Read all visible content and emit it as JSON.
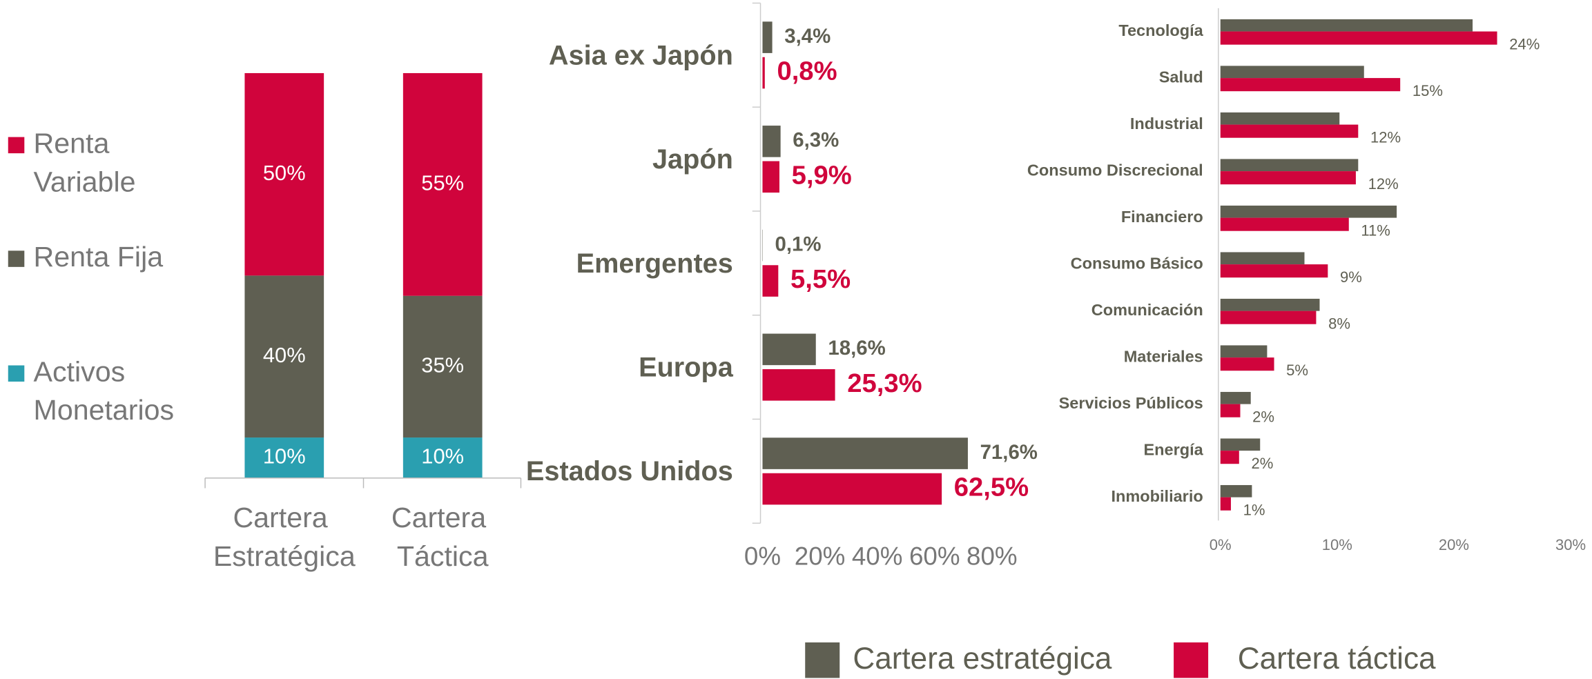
{
  "chart_data": [
    {
      "type": "stacked_bar",
      "categories": [
        "Cartera Estratégica",
        "Cartera Táctica"
      ],
      "series": [
        {
          "name": "Activos Monetarios",
          "color": "#2a9fb0",
          "values": [
            10,
            10
          ],
          "value_labels": [
            "10%",
            "10%"
          ]
        },
        {
          "name": "Renta Fija",
          "color": "#5f5f52",
          "values": [
            40,
            35
          ],
          "value_labels": [
            "40%",
            "35%"
          ]
        },
        {
          "name": "Renta Variable",
          "color": "#d0043c",
          "values": [
            50,
            55
          ],
          "value_labels": [
            "50%",
            "55%"
          ]
        }
      ],
      "ylim": [
        0,
        100
      ]
    },
    {
      "type": "hbar",
      "categories": [
        "Asia ex Japón",
        "Japón",
        "Emergentes",
        "Europa",
        "Estados Unidos"
      ],
      "series": [
        {
          "name": "Cartera estratégica",
          "color": "#5f5f52",
          "values": [
            3.4,
            6.3,
            0.1,
            18.6,
            71.6
          ],
          "value_labels": [
            "3,4%",
            "6,3%",
            "0,1%",
            "18,6%",
            "71,6%"
          ]
        },
        {
          "name": "Cartera táctica",
          "color": "#d0043c",
          "values": [
            0.8,
            5.9,
            5.5,
            25.3,
            62.5
          ],
          "value_labels": [
            "0,8%",
            "5,9%",
            "5,5%",
            "25,3%",
            "62,5%"
          ]
        }
      ],
      "xlim": [
        0,
        80
      ],
      "xticks": [
        {
          "value": 0,
          "label": "0%"
        },
        {
          "value": 20,
          "label": "20%"
        },
        {
          "value": 40,
          "label": "40%"
        },
        {
          "value": 60,
          "label": "60%"
        },
        {
          "value": 80,
          "label": "80%"
        }
      ]
    },
    {
      "type": "hbar_small",
      "categories": [
        "Tecnología",
        "Salud",
        "Industrial",
        "Consumo Discrecional",
        "Financiero",
        "Consumo Básico",
        "Comunicación",
        "Materiales",
        "Servicios Públicos",
        "Energía",
        "Inmobiliario"
      ],
      "series": [
        {
          "name": "Cartera estratégica",
          "color": "#5f5f52",
          "values": [
            21.6,
            12.3,
            10.2,
            11.8,
            15.1,
            7.2,
            8.5,
            4.0,
            2.6,
            3.4,
            2.7
          ]
        },
        {
          "name": "Cartera táctica",
          "color": "#d0043c",
          "values": [
            23.7,
            15.4,
            11.8,
            11.6,
            11.0,
            9.2,
            8.2,
            4.6,
            1.7,
            1.6,
            0.9
          ],
          "value_labels": [
            "24%",
            "15%",
            "12%",
            "12%",
            "11%",
            "9%",
            "8%",
            "5%",
            "2%",
            "2%",
            "1%"
          ]
        }
      ],
      "xlim": [
        0,
        30
      ],
      "xticks": [
        {
          "value": 0,
          "label": "0%"
        },
        {
          "value": 10,
          "label": "10%"
        },
        {
          "value": 20,
          "label": "20%"
        },
        {
          "value": 30,
          "label": "30%"
        }
      ]
    }
  ]
}
